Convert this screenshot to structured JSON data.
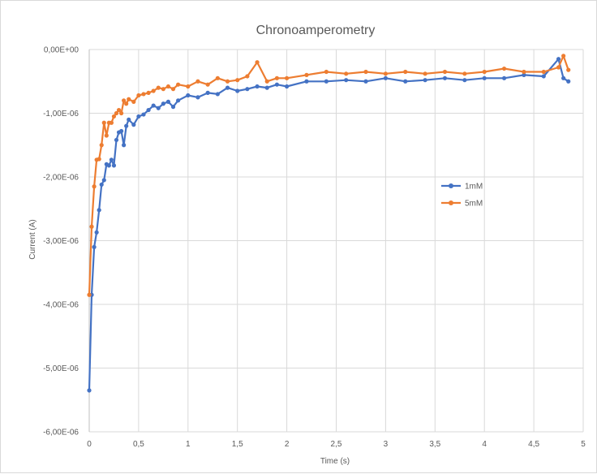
{
  "chart_data": {
    "type": "line",
    "title": "Chronoamperometry",
    "xlabel": "Time (s)",
    "ylabel": "Current (A)",
    "xlim": [
      0,
      5
    ],
    "ylim": [
      -6e-06,
      0
    ],
    "x_ticks": [
      0,
      0.5,
      1,
      1.5,
      2,
      2.5,
      3,
      3.5,
      4,
      4.5,
      5
    ],
    "x_tick_labels": [
      "0",
      "0,5",
      "1",
      "1,5",
      "2",
      "2,5",
      "3",
      "3,5",
      "4",
      "4,5",
      "5"
    ],
    "y_ticks": [
      0,
      -1e-06,
      -2e-06,
      -3e-06,
      -4e-06,
      -5e-06,
      -6e-06
    ],
    "y_tick_labels": [
      "0,00E+00",
      "-1,00E-06",
      "-2,00E-06",
      "-3,00E-06",
      "-4,00E-06",
      "-5,00E-06",
      "-6,00E-06"
    ],
    "grid": true,
    "legend_position": "right",
    "series": [
      {
        "name": "1mM",
        "color": "#4472c4",
        "x": [
          0.0,
          0.025,
          0.05,
          0.075,
          0.1,
          0.125,
          0.15,
          0.175,
          0.2,
          0.225,
          0.25,
          0.275,
          0.3,
          0.325,
          0.35,
          0.375,
          0.4,
          0.45,
          0.5,
          0.55,
          0.6,
          0.65,
          0.7,
          0.75,
          0.8,
          0.85,
          0.9,
          1.0,
          1.1,
          1.2,
          1.3,
          1.4,
          1.5,
          1.6,
          1.7,
          1.8,
          1.9,
          2.0,
          2.2,
          2.4,
          2.6,
          2.8,
          3.0,
          3.2,
          3.4,
          3.6,
          3.8,
          4.0,
          4.2,
          4.4,
          4.6,
          4.75,
          4.8,
          4.85
        ],
        "y": [
          -5.35e-06,
          -3.85e-06,
          -3.1e-06,
          -2.87e-06,
          -2.52e-06,
          -2.12e-06,
          -2.05e-06,
          -1.8e-06,
          -1.82e-06,
          -1.73e-06,
          -1.82e-06,
          -1.42e-06,
          -1.3e-06,
          -1.28e-06,
          -1.5e-06,
          -1.2e-06,
          -1.1e-06,
          -1.18e-06,
          -1.05e-06,
          -1.02e-06,
          -9.5e-07,
          -8.8e-07,
          -9.2e-07,
          -8.5e-07,
          -8.2e-07,
          -9e-07,
          -8e-07,
          -7.2e-07,
          -7.5e-07,
          -6.8e-07,
          -7e-07,
          -6e-07,
          -6.5e-07,
          -6.2e-07,
          -5.8e-07,
          -6e-07,
          -5.5e-07,
          -5.8e-07,
          -5e-07,
          -5e-07,
          -4.8e-07,
          -5e-07,
          -4.5e-07,
          -5e-07,
          -4.8e-07,
          -4.5e-07,
          -4.8e-07,
          -4.5e-07,
          -4.5e-07,
          -4e-07,
          -4.2e-07,
          -1.5e-07,
          -4.5e-07,
          -5e-07
        ]
      },
      {
        "name": "5mM",
        "color": "#ed7d31",
        "x": [
          0.0,
          0.025,
          0.05,
          0.075,
          0.1,
          0.125,
          0.15,
          0.175,
          0.2,
          0.225,
          0.25,
          0.275,
          0.3,
          0.325,
          0.35,
          0.375,
          0.4,
          0.45,
          0.5,
          0.55,
          0.6,
          0.65,
          0.7,
          0.75,
          0.8,
          0.85,
          0.9,
          1.0,
          1.1,
          1.2,
          1.3,
          1.4,
          1.5,
          1.6,
          1.7,
          1.8,
          1.9,
          2.0,
          2.2,
          2.4,
          2.6,
          2.8,
          3.0,
          3.2,
          3.4,
          3.6,
          3.8,
          4.0,
          4.2,
          4.4,
          4.6,
          4.75,
          4.8,
          4.85
        ],
        "y": [
          -3.85e-06,
          -2.78e-06,
          -2.15e-06,
          -1.73e-06,
          -1.72e-06,
          -1.5e-06,
          -1.15e-06,
          -1.35e-06,
          -1.15e-06,
          -1.15e-06,
          -1.05e-06,
          -1e-06,
          -9.5e-07,
          -1e-06,
          -8e-07,
          -8.5e-07,
          -7.8e-07,
          -8.2e-07,
          -7.2e-07,
          -7e-07,
          -6.8e-07,
          -6.5e-07,
          -6e-07,
          -6.2e-07,
          -5.8e-07,
          -6.2e-07,
          -5.5e-07,
          -5.8e-07,
          -5e-07,
          -5.5e-07,
          -4.5e-07,
          -5e-07,
          -4.8e-07,
          -4.2e-07,
          -2e-07,
          -5e-07,
          -4.5e-07,
          -4.5e-07,
          -4e-07,
          -3.5e-07,
          -3.8e-07,
          -3.5e-07,
          -3.8e-07,
          -3.5e-07,
          -3.8e-07,
          -3.5e-07,
          -3.8e-07,
          -3.5e-07,
          -3e-07,
          -3.5e-07,
          -3.5e-07,
          -2.8e-07,
          -1e-07,
          -3.2e-07
        ]
      }
    ]
  }
}
